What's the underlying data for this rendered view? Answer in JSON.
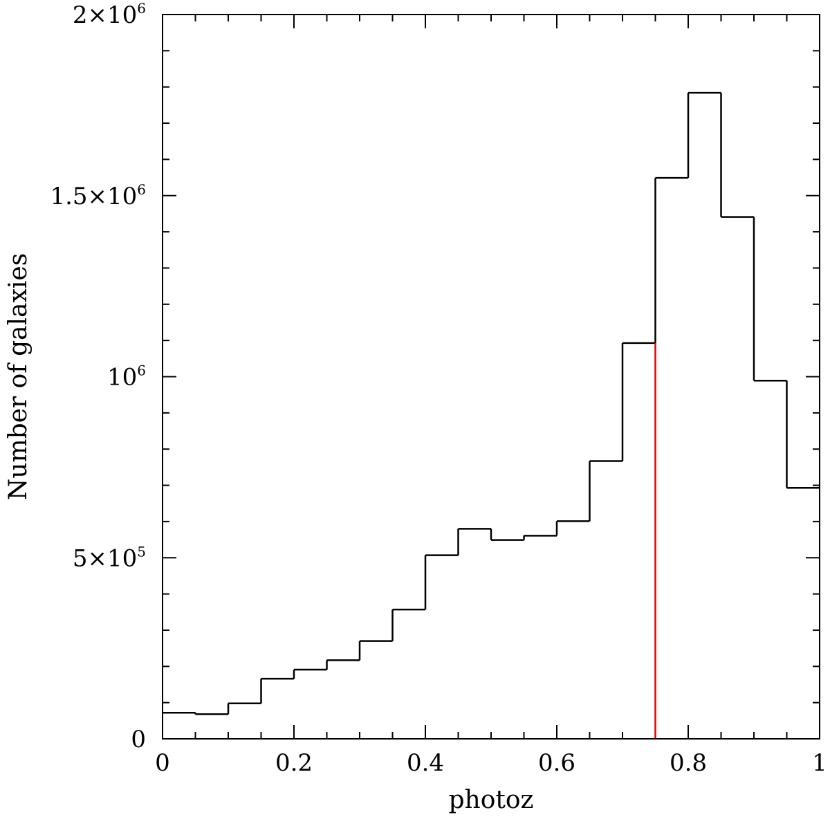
{
  "chart_data": {
    "type": "histogram",
    "xlabel": "photoz",
    "ylabel": "Number of galaxies",
    "xlim": [
      0,
      1
    ],
    "ylim": [
      0,
      2000000
    ],
    "bin_width": 0.05,
    "bin_edges": [
      0,
      0.05,
      0.1,
      0.15,
      0.2,
      0.25,
      0.3,
      0.35,
      0.4,
      0.45,
      0.5,
      0.55,
      0.6,
      0.65,
      0.7,
      0.75,
      0.8,
      0.85,
      0.9,
      0.95,
      1.0
    ],
    "values": [
      72000,
      68000,
      98000,
      166000,
      191000,
      217000,
      270000,
      357000,
      507000,
      580000,
      549000,
      561000,
      601000,
      767000,
      1093000,
      1549000,
      1784000,
      1441000,
      989000,
      693000
    ],
    "x_ticks": [
      {
        "value": 0,
        "label": "0"
      },
      {
        "value": 0.2,
        "label": "0.2"
      },
      {
        "value": 0.4,
        "label": "0.4"
      },
      {
        "value": 0.6,
        "label": "0.6"
      },
      {
        "value": 0.8,
        "label": "0.8"
      },
      {
        "value": 1,
        "label": "1"
      }
    ],
    "y_ticks": [
      {
        "value": 0,
        "label": "0",
        "exp": ""
      },
      {
        "value": 500000,
        "label": "5×10",
        "exp": "5"
      },
      {
        "value": 1000000,
        "label": "10",
        "exp": "6"
      },
      {
        "value": 1500000,
        "label": "1.5×10",
        "exp": "6"
      },
      {
        "value": 2000000,
        "label": "2×10",
        "exp": "6"
      }
    ],
    "marker": {
      "x": 0.75,
      "color": "#e00000"
    },
    "line_color": "#000000",
    "grid": false
  }
}
